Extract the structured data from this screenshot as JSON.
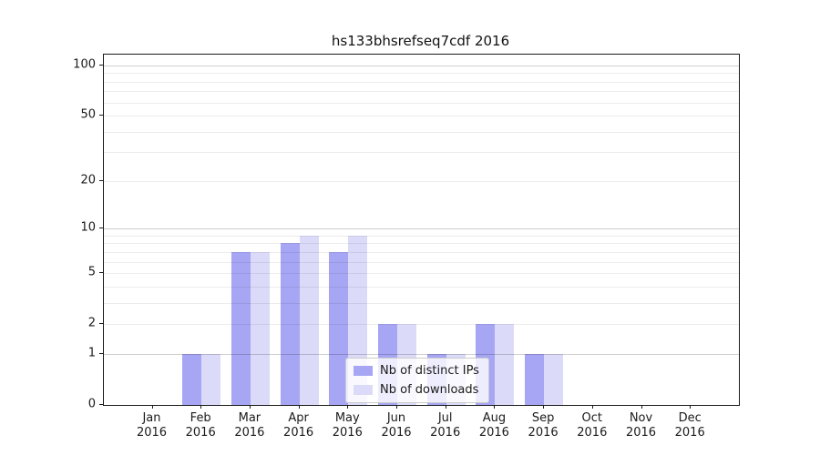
{
  "figure": {
    "background_color": "#ffffff"
  },
  "chart_data": {
    "type": "bar",
    "title": "hs133bhsrefseq7cdf 2016",
    "categories": [
      "Jan",
      "Feb",
      "Mar",
      "Apr",
      "May",
      "Jun",
      "Jul",
      "Aug",
      "Sep",
      "Oct",
      "Nov",
      "Dec"
    ],
    "year_label": "2016",
    "series": [
      {
        "name": "Nb of distinct IPs",
        "color": "#a6a6f4",
        "values": [
          0,
          1,
          7,
          8,
          7,
          2,
          1,
          2,
          1,
          0,
          0,
          0
        ]
      },
      {
        "name": "Nb of downloads",
        "color": "#dbdbf9",
        "values": [
          0,
          1,
          7,
          9,
          9,
          2,
          1,
          2,
          1,
          0,
          0,
          0
        ]
      }
    ],
    "yscale": "log10(1+value)",
    "ylim": [
      0,
      115
    ],
    "yticks": [
      0,
      1,
      2,
      5,
      10,
      20,
      50,
      100
    ],
    "minor_gridline_values": [
      2,
      3,
      4,
      5,
      6,
      7,
      8,
      9,
      20,
      30,
      40,
      50,
      60,
      70,
      80,
      90
    ],
    "major_gridline_values": [
      1,
      10,
      100
    ],
    "legend_position": "lower center inside plot",
    "grid": "horizontal"
  }
}
